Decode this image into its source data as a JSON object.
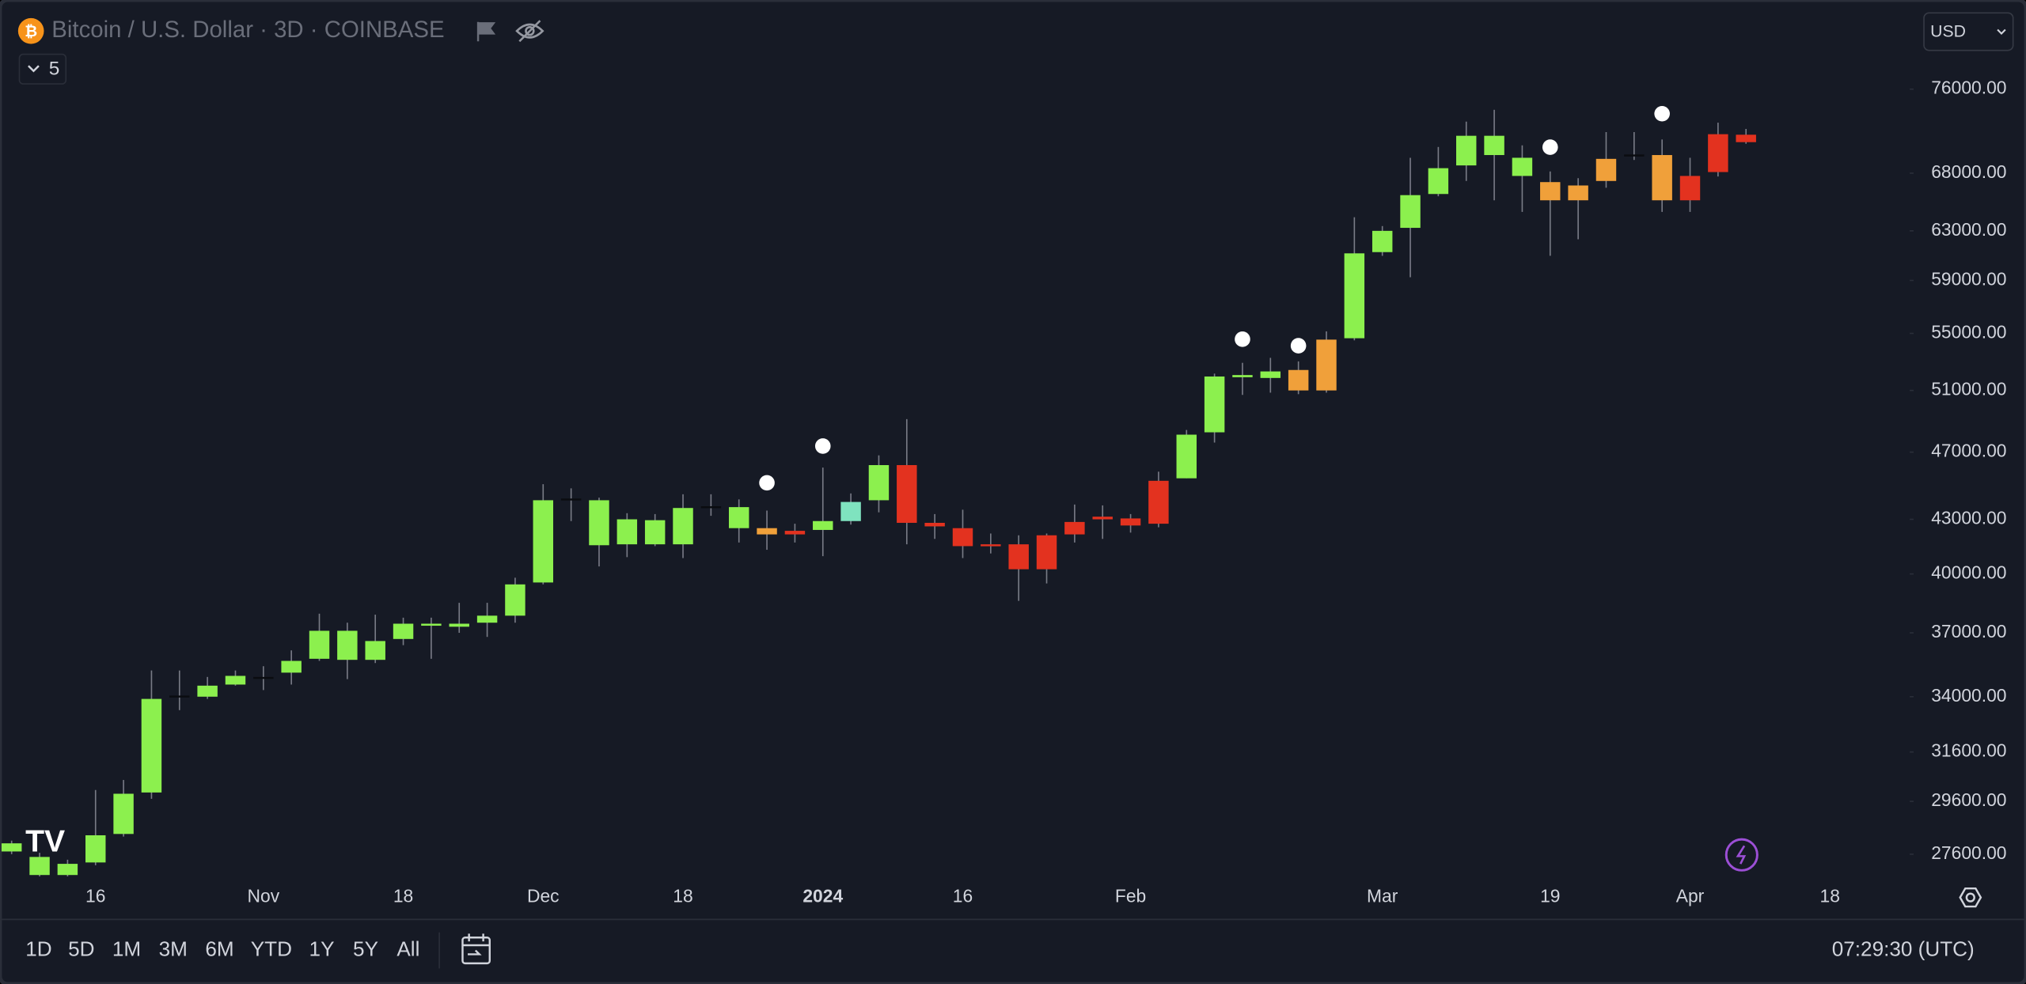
{
  "header": {
    "symbol": "Bitcoin / U.S. Dollar · 3D · COINBASE",
    "indicator_toggle": "5",
    "currency": "USD"
  },
  "footer": {
    "ranges": [
      "1D",
      "5D",
      "1M",
      "3M",
      "6M",
      "YTD",
      "1Y",
      "5Y",
      "All"
    ],
    "clock": "07:29:30 (UTC)"
  },
  "chart_data": {
    "type": "candlestick",
    "log": true,
    "grid": false,
    "categories": [
      null,
      null,
      null,
      "16",
      null,
      null,
      null,
      null,
      null,
      "Nov",
      null,
      null,
      null,
      null,
      "18",
      null,
      null,
      null,
      null,
      "Dec",
      null,
      null,
      null,
      null,
      "18",
      null,
      null,
      null,
      null,
      "2024",
      null,
      null,
      null,
      null,
      "16",
      null,
      null,
      null,
      null,
      null,
      "Feb",
      null,
      null,
      null,
      null,
      null,
      null,
      null,
      null,
      "Mar",
      null,
      null,
      null,
      null,
      null,
      "19",
      null,
      null,
      null,
      null,
      "Apr",
      null,
      null,
      null,
      null,
      "18"
    ],
    "open": [
      27700,
      26850,
      26850,
      27300,
      28350,
      29950,
      34000,
      34000,
      34550,
      34850,
      35100,
      35750,
      35700,
      35700,
      36700,
      37350,
      37300,
      37500,
      37850,
      39550,
      44150,
      41550,
      41600,
      41600,
      41600,
      43700,
      42500,
      42500,
      42350,
      42400,
      42900,
      44100,
      46200,
      42800,
      42500,
      41600,
      41600,
      42100,
      42850,
      43150,
      43050,
      45250,
      45400,
      48250,
      51900,
      51850,
      52400,
      51000,
      54650,
      61250,
      63250,
      66150,
      68700,
      69650,
      67750,
      67200,
      65600,
      67300,
      69600,
      69650,
      67750,
      71600,
      71550,
      null,
      null,
      null
    ],
    "high": [
      28100,
      27650,
      27400,
      30050,
      30450,
      35200,
      35200,
      34900,
      35200,
      35400,
      36150,
      37950,
      37500,
      37900,
      37750,
      37750,
      38500,
      38500,
      39800,
      45050,
      44800,
      44250,
      43350,
      43300,
      44450,
      44450,
      44150,
      43500,
      42750,
      46050,
      44500,
      46800,
      49100,
      43300,
      43550,
      42200,
      42100,
      42200,
      43850,
      43800,
      43300,
      45800,
      48400,
      52150,
      52900,
      53250,
      53000,
      55150,
      64150,
      63400,
      69400,
      70400,
      72800,
      73950,
      70550,
      68150,
      67550,
      71800,
      71800,
      71100,
      69400,
      72700,
      72100,
      null,
      null,
      null
    ],
    "low": [
      27600,
      26800,
      26800,
      27200,
      28250,
      29700,
      33400,
      33900,
      34500,
      34300,
      34550,
      35650,
      34800,
      35550,
      36400,
      35750,
      37000,
      36800,
      37500,
      39450,
      42900,
      40400,
      40900,
      41500,
      40850,
      43200,
      41700,
      41300,
      41700,
      40950,
      42700,
      43400,
      41600,
      41900,
      40850,
      41100,
      38600,
      39500,
      41700,
      41900,
      42250,
      42550,
      45400,
      47600,
      50700,
      50850,
      50750,
      50850,
      54500,
      60950,
      59250,
      65950,
      67300,
      65600,
      64600,
      60950,
      62300,
      66700,
      69200,
      64600,
      64600,
      67700,
      70700,
      null,
      null,
      null
    ],
    "close": [
      28000,
      27500,
      27250,
      28300,
      29900,
      33900,
      34050,
      34500,
      34950,
      34900,
      35650,
      37100,
      37100,
      36600,
      37450,
      37450,
      37450,
      37850,
      39450,
      44100,
      44200,
      44100,
      43000,
      42950,
      43650,
      43750,
      43700,
      42150,
      42150,
      42900,
      44000,
      46200,
      42800,
      42600,
      41500,
      41500,
      40250,
      40250,
      42150,
      43000,
      42650,
      42750,
      48100,
      51950,
      52050,
      52300,
      51000,
      54550,
      61150,
      63000,
      66050,
      68450,
      71450,
      71450,
      69400,
      65600,
      66900,
      69300,
      69700,
      65600,
      65600,
      68100,
      70850,
      null,
      null,
      null
    ],
    "colors": [
      "#8cf04e",
      "#8cf04e",
      "#8cf04e",
      "#8cf04e",
      "#8cf04e",
      "#8cf04e",
      "#0a0c10",
      "#8cf04e",
      "#8cf04e",
      "#0a0c10",
      "#8cf04e",
      "#8cf04e",
      "#8cf04e",
      "#8cf04e",
      "#8cf04e",
      "#8cf04e",
      "#8cf04e",
      "#8cf04e",
      "#8cf04e",
      "#8cf04e",
      "#0a0c10",
      "#8cf04e",
      "#8cf04e",
      "#8cf04e",
      "#8cf04e",
      "#0a0c10",
      "#8cf04e",
      "#f0a03a",
      "#e3321f",
      "#8cf04e",
      "#7fe3bf",
      "#8cf04e",
      "#e3321f",
      "#e3321f",
      "#e3321f",
      "#e3321f",
      "#e3321f",
      "#e3321f",
      "#e3321f",
      "#e3321f",
      "#e3321f",
      "#e3321f",
      "#8cf04e",
      "#8cf04e",
      "#8cf04e",
      "#8cf04e",
      "#f0a03a",
      "#f0a03a",
      "#8cf04e",
      "#8cf04e",
      "#8cf04e",
      "#8cf04e",
      "#8cf04e",
      "#8cf04e",
      "#8cf04e",
      "#f0a03a",
      "#f0a03a",
      "#f0a03a",
      "#0a0c10",
      "#f0a03a",
      "#e3321f",
      "#e3321f",
      "#e3321f",
      null,
      null,
      null
    ],
    "wick_color": "#787b86",
    "markers": {
      "color": "#ffffff",
      "values": [
        null,
        null,
        null,
        null,
        null,
        null,
        null,
        null,
        null,
        null,
        null,
        null,
        null,
        null,
        null,
        null,
        null,
        null,
        null,
        null,
        null,
        null,
        null,
        null,
        null,
        null,
        null,
        45130,
        null,
        47380,
        null,
        null,
        null,
        null,
        null,
        null,
        null,
        null,
        null,
        null,
        null,
        null,
        null,
        null,
        54580,
        null,
        54110,
        null,
        null,
        null,
        null,
        null,
        null,
        null,
        null,
        70380,
        null,
        null,
        null,
        73570,
        null,
        null,
        null,
        null,
        null,
        null
      ]
    },
    "ylim": [
      26740,
      84360
    ],
    "yticks": [
      {
        "value": 76000,
        "label": "76000.00"
      },
      {
        "value": 68000,
        "label": "68000.00"
      },
      {
        "value": 63000,
        "label": "63000.00"
      },
      {
        "value": 59000,
        "label": "59000.00"
      },
      {
        "value": 55000,
        "label": "55000.00"
      },
      {
        "value": 51000,
        "label": "51000.00"
      },
      {
        "value": 47000,
        "label": "47000.00"
      },
      {
        "value": 43000,
        "label": "43000.00"
      },
      {
        "value": 40000,
        "label": "40000.00"
      },
      {
        "value": 37000,
        "label": "37000.00"
      },
      {
        "value": 34000,
        "label": "34000.00"
      },
      {
        "value": 31600,
        "label": "31600.00"
      },
      {
        "value": 29600,
        "label": "29600.00"
      },
      {
        "value": 27600,
        "label": "27600.00"
      }
    ]
  }
}
